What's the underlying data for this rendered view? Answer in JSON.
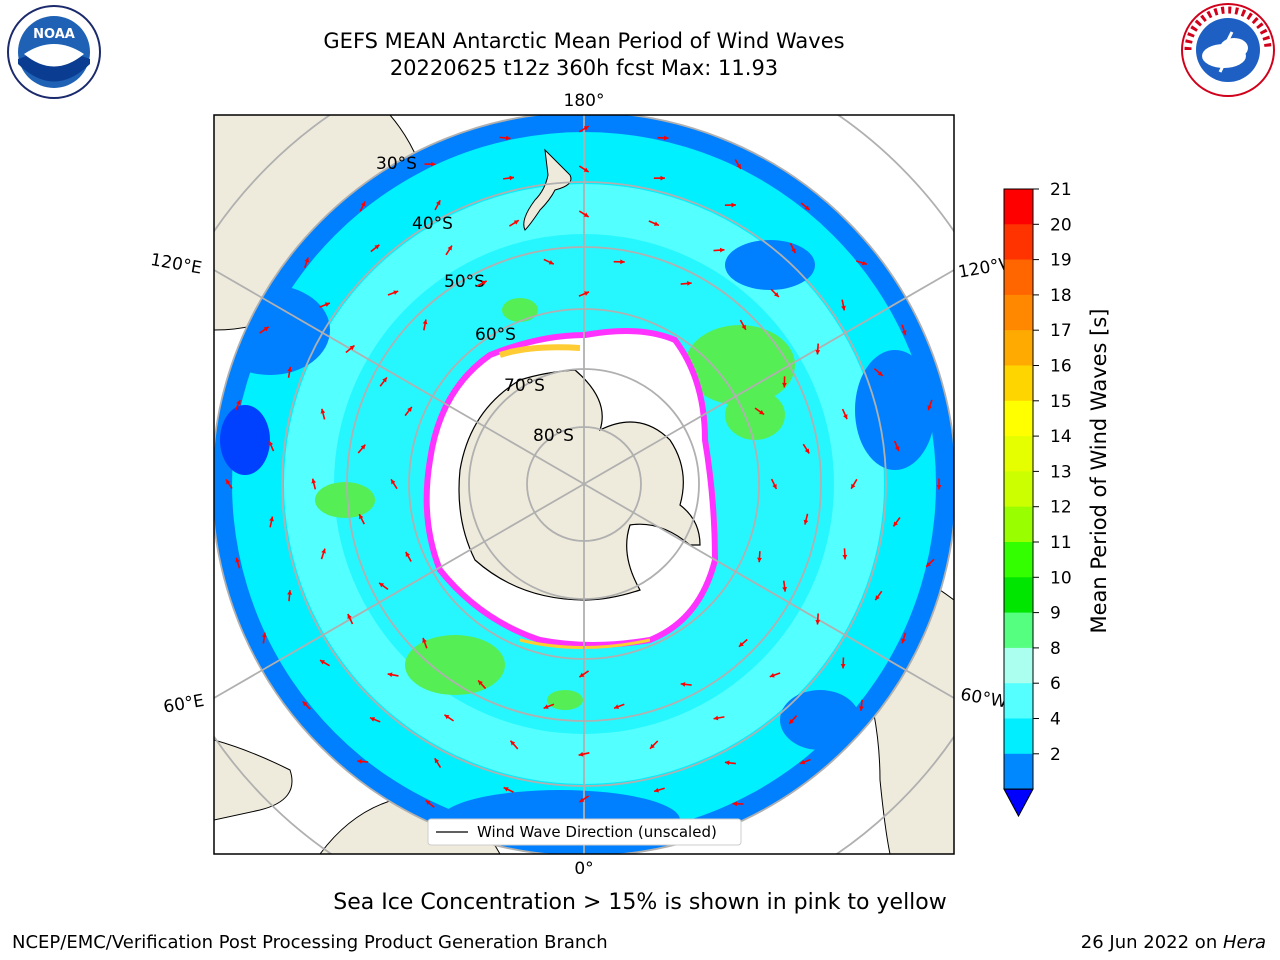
{
  "header": {
    "title_line1": "GEFS MEAN Antarctic Mean Period of Wind Waves",
    "title_line2": "20220625 t12z 360h fcst   Max: 11.93"
  },
  "logos": {
    "left": "noaa-logo",
    "left_text": "NOAA",
    "right": "national-weather-service-logo",
    "right_text": "NATIONAL WEATHER SERVICE"
  },
  "map": {
    "longitude_labels": {
      "top": "180°",
      "bottom": "0°",
      "upper_left": "120°E",
      "upper_right": "120°W",
      "lower_left": "60°E",
      "lower_right": "60°W"
    },
    "latitude_labels": [
      "30°S",
      "40°S",
      "50°S",
      "60°S",
      "70°S",
      "80°S"
    ],
    "legend_label": "Wind Wave Direction (unscaled)"
  },
  "colorbar": {
    "label": "Mean Period of Wind Waves [s]",
    "ticks": [
      "21",
      "20",
      "19",
      "18",
      "17",
      "16",
      "15",
      "14",
      "13",
      "12",
      "11",
      "10",
      "9",
      "8",
      "6",
      "4",
      "2"
    ],
    "colors": [
      "#ff0000",
      "#ff3300",
      "#ff6600",
      "#ff8800",
      "#ffaa00",
      "#ffd500",
      "#ffff00",
      "#e6ff00",
      "#ccff00",
      "#99ff00",
      "#33ff00",
      "#00e600",
      "#55ff80",
      "#aaffee",
      "#55ffff",
      "#00eeff",
      "#0088ff"
    ],
    "extend_color": "#0000ff"
  },
  "ocean_colors": {
    "light_cyan": "#54ffff",
    "cyan": "#00f0ff",
    "blue": "#0080ff",
    "green": "#55ee55",
    "land": "#efebdc",
    "sea_ice_white": "#ffffff",
    "sea_ice_pink": "#ff33ff",
    "sea_ice_yellow": "#ffcc33",
    "arrow": "#ff0000"
  },
  "caption": "Sea Ice Concentration > 15% is shown in pink to yellow",
  "footer": {
    "left": "NCEP/EMC/Verification Post Processing Product Generation Branch",
    "right_prefix": "26 Jun 2022 on ",
    "right_host": "Hera"
  }
}
